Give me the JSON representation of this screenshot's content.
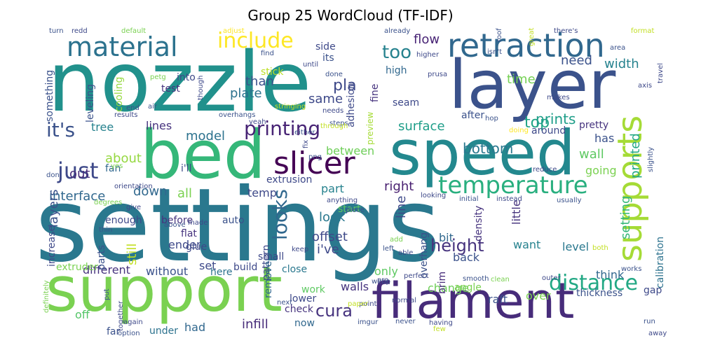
{
  "title": "Group 25 WordCloud (TF-IDF)",
  "words": [
    {
      "text": "settings",
      "color": "#2a788e"
    },
    {
      "text": "nozzle",
      "color": "#21918c"
    },
    {
      "text": "layer",
      "color": "#3b528b"
    },
    {
      "text": "support",
      "color": "#7ad151"
    },
    {
      "text": "speed",
      "color": "#23888e"
    },
    {
      "text": "bed",
      "color": "#35b779"
    },
    {
      "text": "filament",
      "color": "#472c7a"
    },
    {
      "text": "retraction",
      "color": "#31688e"
    },
    {
      "text": "material",
      "color": "#2c728e"
    },
    {
      "text": "supports",
      "color": "#a5db36"
    },
    {
      "text": "slicer",
      "color": "#440154"
    },
    {
      "text": "temperature",
      "color": "#29af7f"
    },
    {
      "text": "include",
      "color": "#fde725"
    },
    {
      "text": "printing",
      "color": "#482475"
    },
    {
      "text": "distance",
      "color": "#22a884"
    },
    {
      "text": "just",
      "color": "#3e4989"
    },
    {
      "text": "height",
      "color": "#46337e"
    },
    {
      "text": "it's",
      "color": "#3b528b"
    },
    {
      "text": "looks",
      "color": "#31688e"
    },
    {
      "text": "too",
      "color": "#26828e"
    },
    {
      "text": "cura",
      "color": "#46337e"
    },
    {
      "text": "pla",
      "color": "#3e4989"
    },
    {
      "text": "top",
      "color": "#20a486"
    },
    {
      "text": "bottom",
      "color": "#2a788e"
    },
    {
      "text": "prints",
      "color": "#1f9e89"
    },
    {
      "text": "flow",
      "color": "#482475"
    },
    {
      "text": "width",
      "color": "#26828e"
    },
    {
      "text": "need",
      "color": "#3b528b"
    },
    {
      "text": "time",
      "color": "#75d054"
    },
    {
      "text": "printed",
      "color": "#22a884"
    },
    {
      "text": "same",
      "color": "#3e4989"
    },
    {
      "text": "plate",
      "color": "#2c728e"
    },
    {
      "text": "than",
      "color": "#3b528b"
    },
    {
      "text": "interface",
      "color": "#31688e"
    },
    {
      "text": "model",
      "color": "#2c728e"
    },
    {
      "text": "all",
      "color": "#7ad151"
    },
    {
      "text": "out",
      "color": "#472c7a"
    },
    {
      "text": "about",
      "color": "#95d840"
    },
    {
      "text": "surface",
      "color": "#1f9e89"
    },
    {
      "text": "between",
      "color": "#6ece58"
    },
    {
      "text": "right",
      "color": "#481f70"
    },
    {
      "text": "part",
      "color": "#26828e"
    },
    {
      "text": "infill",
      "color": "#472c7a"
    },
    {
      "text": "offset",
      "color": "#3e4989"
    },
    {
      "text": "i've",
      "color": "#3e4989"
    },
    {
      "text": "layers",
      "color": "#3b528b"
    },
    {
      "text": "down",
      "color": "#31688e"
    },
    {
      "text": "temp",
      "color": "#3e4989"
    },
    {
      "text": "look",
      "color": "#2a788e"
    },
    {
      "text": "setting",
      "color": "#35b779"
    },
    {
      "text": "bit",
      "color": "#31688e"
    },
    {
      "text": "wall",
      "color": "#5ec962"
    },
    {
      "text": "has",
      "color": "#3b528b"
    },
    {
      "text": "off",
      "color": "#54c568"
    },
    {
      "text": "only",
      "color": "#5ec962"
    },
    {
      "text": "still",
      "color": "#c2df23"
    },
    {
      "text": "ender",
      "color": "#3e4989"
    },
    {
      "text": "think",
      "color": "#31688e"
    },
    {
      "text": "want",
      "color": "#26828e"
    },
    {
      "text": "line",
      "color": "#3e4989"
    },
    {
      "text": "little",
      "color": "#46337e"
    },
    {
      "text": "change",
      "color": "#6ece58"
    },
    {
      "text": "over",
      "color": "#7ad151"
    },
    {
      "text": "raft",
      "color": "#3b528b"
    },
    {
      "text": "tree",
      "color": "#26828e"
    },
    {
      "text": "lines",
      "color": "#46337e"
    },
    {
      "text": "had",
      "color": "#31688e"
    },
    {
      "text": "set",
      "color": "#3e4989"
    },
    {
      "text": "different",
      "color": "#46337e"
    },
    {
      "text": "without",
      "color": "#3b528b"
    },
    {
      "text": "going",
      "color": "#7ad151"
    },
    {
      "text": "level",
      "color": "#2a788e"
    },
    {
      "text": "density",
      "color": "#46337e"
    },
    {
      "text": "back",
      "color": "#3b528b"
    },
    {
      "text": "walls",
      "color": "#46337e"
    },
    {
      "text": "work",
      "color": "#5ec962"
    },
    {
      "text": "check",
      "color": "#46337e"
    },
    {
      "text": "lower",
      "color": "#3e4989"
    },
    {
      "text": "now",
      "color": "#31688e"
    },
    {
      "text": "under",
      "color": "#2c728e"
    },
    {
      "text": "extrusion",
      "color": "#3e4989"
    },
    {
      "text": "auto",
      "color": "#3b528b"
    },
    {
      "text": "here",
      "color": "#2c728e"
    },
    {
      "text": "enough",
      "color": "#3e4989"
    },
    {
      "text": "flat",
      "color": "#46337e"
    },
    {
      "text": "glue",
      "color": "#3e4989"
    },
    {
      "text": "parts",
      "color": "#3b528b"
    },
    {
      "text": "around",
      "color": "#3e4989"
    },
    {
      "text": "pretty",
      "color": "#46337e"
    },
    {
      "text": "after",
      "color": "#3b528b"
    },
    {
      "text": "seam",
      "color": "#3e4989"
    },
    {
      "text": "test",
      "color": "#46337e"
    },
    {
      "text": "cooling",
      "color": "#95d840"
    },
    {
      "text": "leveling",
      "color": "#3b528b"
    },
    {
      "text": "into",
      "color": "#3e4989"
    },
    {
      "text": "something",
      "color": "#3b528b"
    },
    {
      "text": "increase",
      "color": "#3e4989"
    },
    {
      "text": "thickness",
      "color": "#3b528b"
    },
    {
      "text": "calibration",
      "color": "#2c728e"
    },
    {
      "text": "gap",
      "color": "#3e4989"
    },
    {
      "text": "brim",
      "color": "#472c7a"
    },
    {
      "text": "overhang",
      "color": "#3b528b"
    },
    {
      "text": "pattern",
      "color": "#3e4989"
    },
    {
      "text": "remove",
      "color": "#31688e"
    },
    {
      "text": "close",
      "color": "#2a788e"
    },
    {
      "text": "angle",
      "color": "#7ad151"
    },
    {
      "text": "build",
      "color": "#3e4989"
    },
    {
      "text": "extruder",
      "color": "#7ad151"
    },
    {
      "text": "fan",
      "color": "#31688e"
    },
    {
      "text": "before",
      "color": "#46337e"
    },
    {
      "text": "i'll",
      "color": "#3e4989"
    },
    {
      "text": "far",
      "color": "#3b528b"
    },
    {
      "text": "high",
      "color": "#31688e"
    },
    {
      "text": "side",
      "color": "#3e4989"
    },
    {
      "text": "its",
      "color": "#3b528b"
    },
    {
      "text": "adhesion",
      "color": "#3e4989"
    },
    {
      "text": "preview",
      "color": "#a5db36"
    },
    {
      "text": "fine",
      "color": "#46337e"
    },
    {
      "text": "stick",
      "color": "#bddf26"
    },
    {
      "text": "small",
      "color": "#3e4989"
    },
    {
      "text": "start",
      "color": "#5ec962"
    },
    {
      "text": "turn",
      "color": "#3b528b"
    },
    {
      "text": "redd",
      "color": "#3e4989"
    },
    {
      "text": "default",
      "color": "#7ad151"
    },
    {
      "text": "adjust",
      "color": "#fde725"
    },
    {
      "text": "already",
      "color": "#3b528b"
    },
    {
      "text": "there's",
      "color": "#3e4989"
    },
    {
      "text": "area",
      "color": "#3b528b"
    },
    {
      "text": "format",
      "color": "#c2df23"
    },
    {
      "text": "higher",
      "color": "#3e4989"
    },
    {
      "text": "find",
      "color": "#3b528b"
    },
    {
      "text": "until",
      "color": "#3e4989"
    },
    {
      "text": "done",
      "color": "#3b528b"
    },
    {
      "text": "prusa",
      "color": "#3e4989"
    },
    {
      "text": "isn't",
      "color": "#3b528b"
    },
    {
      "text": "axis",
      "color": "#3e4989"
    },
    {
      "text": "travel",
      "color": "#3e4989"
    },
    {
      "text": "great",
      "color": "#c2df23"
    },
    {
      "text": "roof",
      "color": "#3b528b"
    },
    {
      "text": "makes",
      "color": "#3e4989"
    },
    {
      "text": "hop",
      "color": "#3b528b"
    },
    {
      "text": "doing",
      "color": "#fde725"
    },
    {
      "text": "petg",
      "color": "#7ad151"
    },
    {
      "text": "air",
      "color": "#3b528b"
    },
    {
      "text": "needs",
      "color": "#3e4989"
    },
    {
      "text": "steps",
      "color": "#3b528b"
    },
    {
      "text": "stringing",
      "color": "#c2df23"
    },
    {
      "text": "though",
      "color": "#3e4989"
    },
    {
      "text": "end",
      "color": "#3b528b"
    },
    {
      "text": "results",
      "color": "#3e4989"
    },
    {
      "text": "yes",
      "color": "#7ad151"
    },
    {
      "text": "don",
      "color": "#3b528b"
    },
    {
      "text": "orientation",
      "color": "#3e4989"
    },
    {
      "text": "overhangs",
      "color": "#3b528b"
    },
    {
      "text": "yeah",
      "color": "#3e4989"
    },
    {
      "text": "either",
      "color": "#3b528b"
    },
    {
      "text": "fix",
      "color": "#3e4989"
    },
    {
      "text": "png",
      "color": "#3b528b"
    },
    {
      "text": "through",
      "color": "#c2df23"
    },
    {
      "text": "reduce",
      "color": "#3e4989"
    },
    {
      "text": "slightly",
      "color": "#3b528b"
    },
    {
      "text": "looking",
      "color": "#3e4989"
    },
    {
      "text": "initial",
      "color": "#3b528b"
    },
    {
      "text": "instead",
      "color": "#3e4989"
    },
    {
      "text": "usually",
      "color": "#3b528b"
    },
    {
      "text": "anything",
      "color": "#3e4989"
    },
    {
      "text": "piece",
      "color": "#3b528b"
    },
    {
      "text": "degrees",
      "color": "#7ad151"
    },
    {
      "text": "give",
      "color": "#3e4989"
    },
    {
      "text": "above",
      "color": "#3b528b"
    },
    {
      "text": "made",
      "color": "#3e4989"
    },
    {
      "text": "thin",
      "color": "#3b528b"
    },
    {
      "text": "keep",
      "color": "#3e4989"
    },
    {
      "text": "add",
      "color": "#7ad151"
    },
    {
      "text": "left",
      "color": "#3b528b"
    },
    {
      "text": "able",
      "color": "#3e4989"
    },
    {
      "text": "both",
      "color": "#c2df23"
    },
    {
      "text": "works",
      "color": "#3b528b"
    },
    {
      "text": "outer",
      "color": "#3e4989"
    },
    {
      "text": "clean",
      "color": "#7ad151"
    },
    {
      "text": "smooth",
      "color": "#3b528b"
    },
    {
      "text": "perfect",
      "color": "#3e4989"
    },
    {
      "text": "webp",
      "color": "#3b528b"
    },
    {
      "text": "pro",
      "color": "#3e4989"
    },
    {
      "text": "definitely",
      "color": "#7ad151"
    },
    {
      "text": "put",
      "color": "#3b528b"
    },
    {
      "text": "together",
      "color": "#3e4989"
    },
    {
      "text": "next",
      "color": "#3b528b"
    },
    {
      "text": "again",
      "color": "#3e4989"
    },
    {
      "text": "option",
      "color": "#3b528b"
    },
    {
      "text": "point",
      "color": "#3e4989"
    },
    {
      "text": "paper",
      "color": "#c2df23"
    },
    {
      "text": "imgur",
      "color": "#3b528b"
    },
    {
      "text": "normal",
      "color": "#3e4989"
    },
    {
      "text": "never",
      "color": "#3b528b"
    },
    {
      "text": "having",
      "color": "#3e4989"
    },
    {
      "text": "few",
      "color": "#c2df23"
    },
    {
      "text": "run",
      "color": "#3b528b"
    },
    {
      "text": "away",
      "color": "#3e4989"
    },
    {
      "text": "low",
      "color": "#3b528b"
    }
  ]
}
